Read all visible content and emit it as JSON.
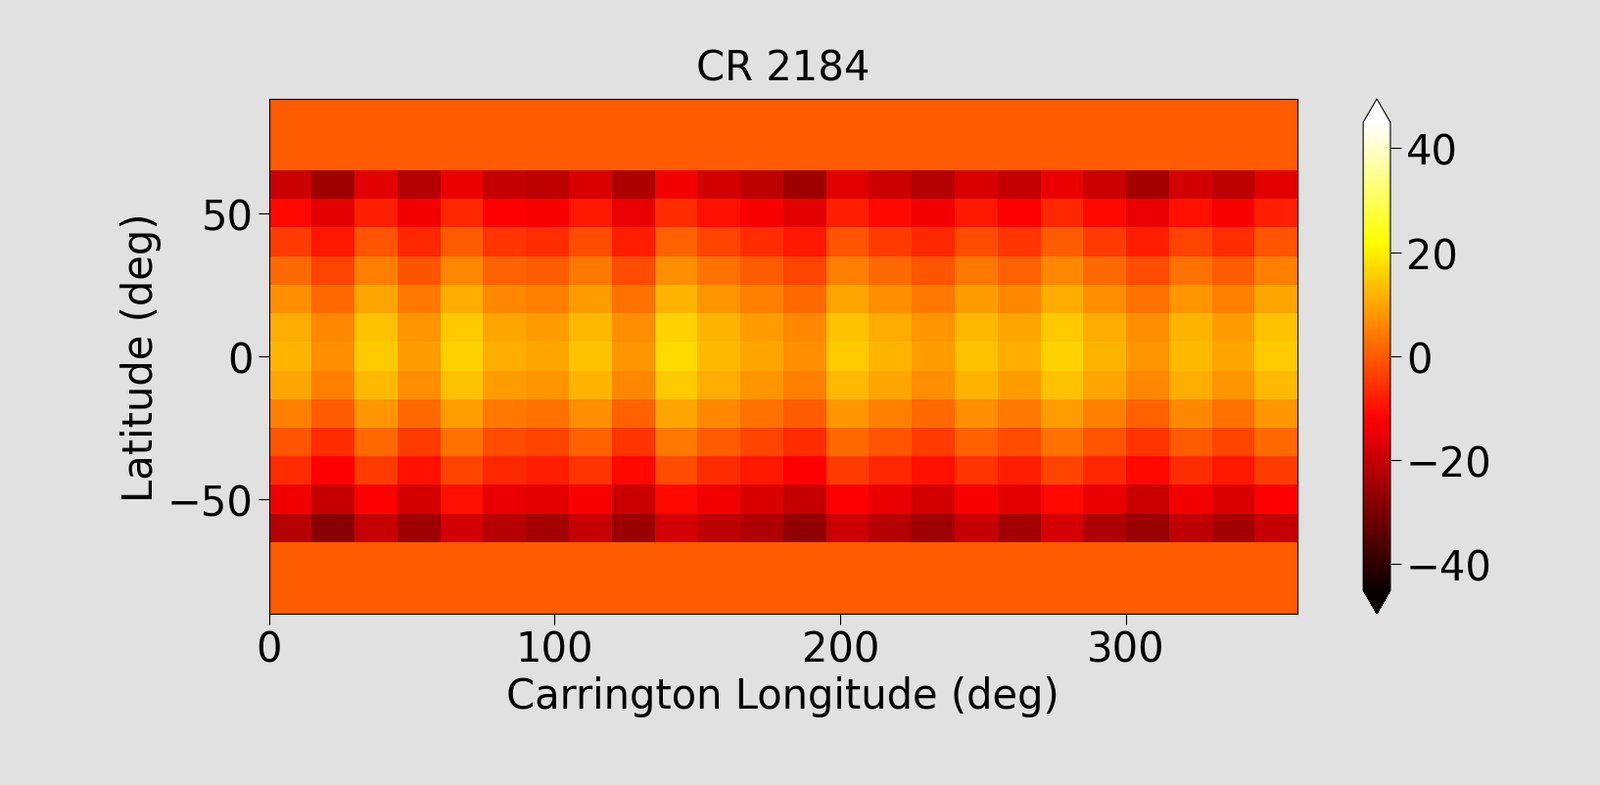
{
  "chart_data": {
    "type": "heatmap",
    "title": "CR 2184",
    "x_label": "Carrington Longitude (deg)",
    "y_label": "Latitude (deg)",
    "xlim": [
      0,
      360
    ],
    "xticks": [
      0,
      100,
      200,
      300
    ],
    "ylim": [
      -90,
      90
    ],
    "yticks": [
      {
        "value": -50,
        "label": "−50"
      },
      0,
      50
    ],
    "color": "hot",
    "lon_edges": [
      0,
      15,
      30,
      45,
      60,
      75,
      90,
      105,
      120,
      135,
      150,
      165,
      180,
      195,
      210,
      225,
      240,
      255,
      270,
      285,
      300,
      315,
      330,
      345,
      360
    ],
    "lat_edges": [
      -90,
      -65,
      -55,
      -45,
      -35,
      -25,
      -15,
      -5,
      5,
      15,
      25,
      35,
      45,
      55,
      65,
      90
    ],
    "cells": [
      [
        0,
        0,
        0,
        0,
        0,
        0,
        0,
        0,
        0,
        0,
        0,
        0,
        0,
        0,
        0,
        0,
        0,
        0,
        0,
        0,
        0,
        0,
        0,
        0
      ],
      [
        -22,
        -28,
        -20,
        -25,
        -18,
        -22,
        -24,
        -20,
        -26,
        -18,
        -21,
        -23,
        -27,
        -19,
        -22,
        -25,
        -20,
        -24,
        -18,
        -23,
        -26,
        -21,
        -24,
        -20
      ],
      [
        -14,
        -20,
        -12,
        -18,
        -10,
        -15,
        -16,
        -13,
        -19,
        -11,
        -14,
        -17,
        -20,
        -12,
        -15,
        -18,
        -13,
        -16,
        -11,
        -15,
        -19,
        -14,
        -17,
        -12
      ],
      [
        -6,
        -12,
        -4,
        -10,
        -3,
        -7,
        -8,
        -5,
        -11,
        -2,
        -6,
        -9,
        -12,
        -4,
        -7,
        -10,
        -5,
        -8,
        -3,
        -7,
        -11,
        -6,
        -9,
        -4
      ],
      [
        -1,
        -6,
        2,
        -4,
        3,
        -2,
        -3,
        1,
        -5,
        4,
        0,
        -3,
        -6,
        2,
        -1,
        -4,
        1,
        -2,
        3,
        -1,
        -5,
        0,
        -3,
        2
      ],
      [
        5,
        0,
        8,
        2,
        9,
        4,
        3,
        7,
        1,
        10,
        6,
        3,
        0,
        8,
        5,
        2,
        7,
        4,
        9,
        5,
        1,
        6,
        3,
        8
      ],
      [
        10,
        5,
        13,
        7,
        14,
        9,
        8,
        12,
        6,
        15,
        11,
        8,
        5,
        13,
        10,
        7,
        12,
        9,
        14,
        10,
        6,
        11,
        8,
        13
      ],
      [
        12,
        7,
        15,
        9,
        16,
        11,
        10,
        14,
        8,
        17,
        13,
        10,
        7,
        15,
        12,
        9,
        14,
        11,
        16,
        12,
        8,
        13,
        10,
        15
      ],
      [
        11,
        6,
        14,
        8,
        15,
        10,
        9,
        13,
        7,
        16,
        12,
        9,
        6,
        14,
        11,
        8,
        13,
        10,
        15,
        11,
        7,
        12,
        9,
        14
      ],
      [
        7,
        2,
        10,
        4,
        11,
        6,
        5,
        9,
        3,
        12,
        8,
        5,
        2,
        10,
        7,
        4,
        9,
        6,
        11,
        7,
        3,
        8,
        5,
        10
      ],
      [
        2,
        -3,
        5,
        -1,
        6,
        1,
        0,
        4,
        -2,
        7,
        3,
        0,
        -3,
        5,
        2,
        -1,
        4,
        1,
        6,
        2,
        -2,
        3,
        0,
        5
      ],
      [
        -4,
        -9,
        -1,
        -7,
        0,
        -5,
        -6,
        -2,
        -8,
        1,
        -3,
        -6,
        -9,
        -1,
        -4,
        -7,
        -2,
        -5,
        0,
        -4,
        -8,
        -3,
        -6,
        -1
      ],
      [
        -11,
        -16,
        -8,
        -14,
        -7,
        -12,
        -13,
        -9,
        -15,
        -6,
        -10,
        -13,
        -16,
        -8,
        -11,
        -14,
        -9,
        -12,
        -7,
        -11,
        -15,
        -10,
        -13,
        -8
      ],
      [
        -19,
        -25,
        -16,
        -22,
        -15,
        -20,
        -21,
        -17,
        -23,
        -14,
        -18,
        -21,
        -25,
        -16,
        -19,
        -22,
        -17,
        -20,
        -15,
        -19,
        -24,
        -18,
        -21,
        -16
      ],
      [
        0,
        0,
        0,
        0,
        0,
        0,
        0,
        0,
        0,
        0,
        0,
        0,
        0,
        0,
        0,
        0,
        0,
        0,
        0,
        0,
        0,
        0,
        0,
        0
      ]
    ],
    "colorbar": {
      "range": [
        -45,
        45
      ],
      "ticks": [
        {
          "value": -40,
          "label": "−40"
        },
        {
          "value": -20,
          "label": "−20"
        },
        0,
        20,
        40
      ]
    }
  }
}
